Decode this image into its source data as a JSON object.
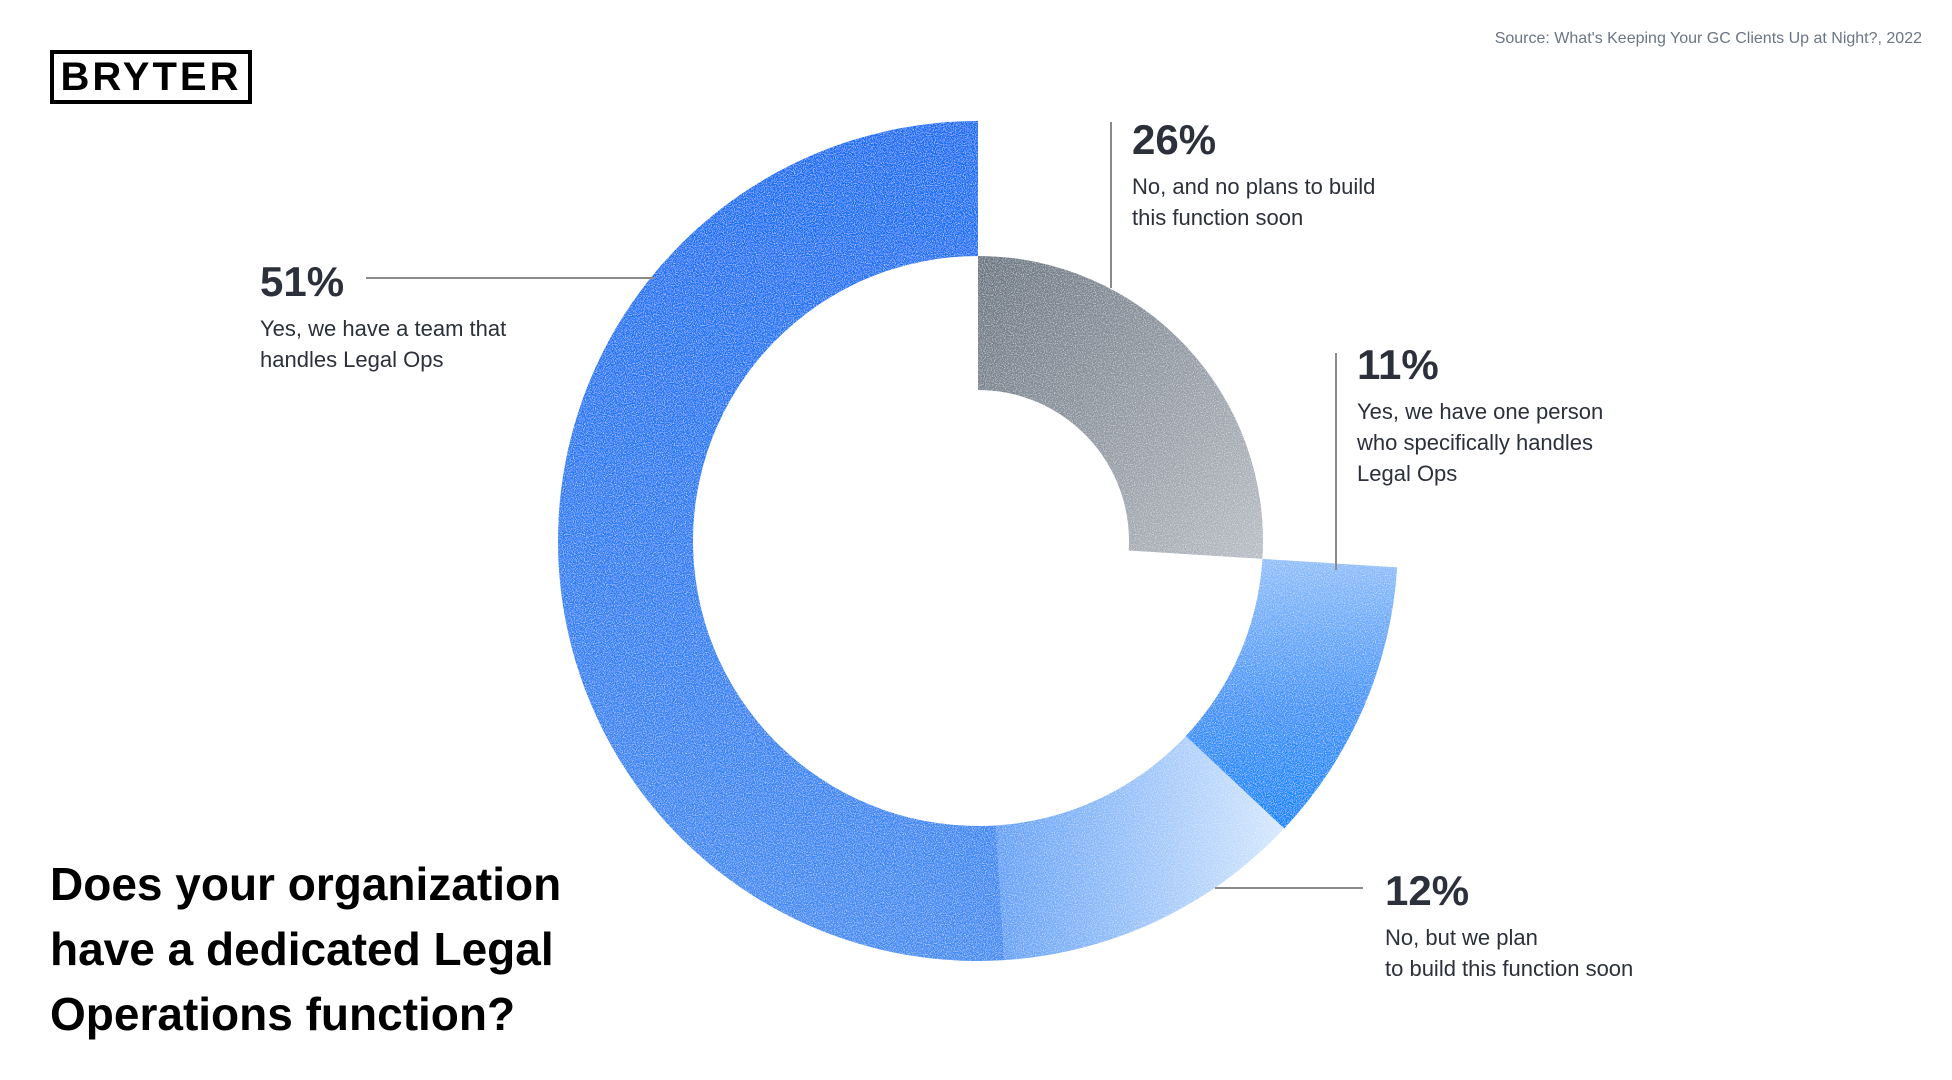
{
  "source": "Source: What's Keeping Your GC Clients Up at Night?, 2022",
  "logo": "BRYTER",
  "title": "Does your organization\nhave a dedicated  Legal\nOperations function?",
  "chart_data": {
    "type": "pie",
    "variant": "donut",
    "title": "Does your organization have a dedicated  Legal Operations function?",
    "slices": [
      {
        "label": "No, and no plans to build this function soon",
        "value": 26,
        "display": "26%",
        "color": "#8a929d"
      },
      {
        "label": "Yes, we have one person who specifically handles Legal Ops",
        "value": 11,
        "display": "11%",
        "color": "#2f8cf7"
      },
      {
        "label": "No, but we plan to build this function soon",
        "value": 12,
        "display": "12%",
        "color": "#9cc5fa"
      },
      {
        "label": "Yes, we have a team that handles Legal Ops",
        "value": 51,
        "display": "51%",
        "color": "#1a72f0"
      }
    ]
  },
  "labels": {
    "s26": {
      "pct": "26%",
      "desc": "No, and no plans to build\nthis function soon"
    },
    "s11": {
      "pct": "11%",
      "desc": "Yes, we have one person\nwho specifically handles\nLegal Ops"
    },
    "s12": {
      "pct": "12%",
      "desc": "No, but we plan\nto build this function soon"
    },
    "s51": {
      "pct": "51%",
      "desc": "Yes, we have a team that\nhandles Legal Ops"
    }
  }
}
